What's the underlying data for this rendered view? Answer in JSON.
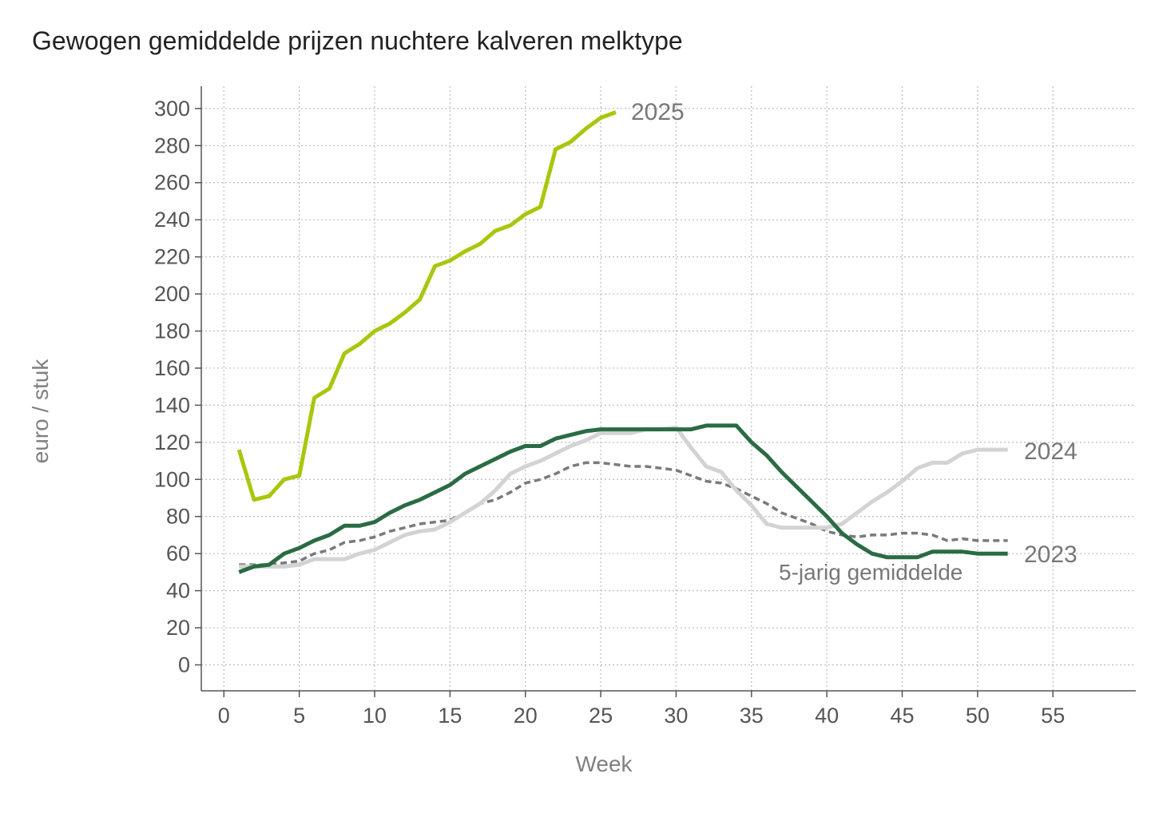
{
  "chart_data": {
    "type": "line",
    "title": "Gewogen gemiddelde prijzen nuchtere kalveren melktype",
    "xlabel": "Week",
    "ylabel": "euro / stuk",
    "xlim": [
      -1.5,
      60.5
    ],
    "ylim": [
      -14,
      312
    ],
    "xticks": [
      0,
      5,
      10,
      15,
      20,
      25,
      30,
      35,
      40,
      45,
      50,
      55
    ],
    "yticks": [
      0,
      20,
      40,
      60,
      80,
      100,
      120,
      140,
      160,
      180,
      200,
      220,
      240,
      260,
      280,
      300
    ],
    "grid": true,
    "legend": "inline labels at line ends",
    "series": [
      {
        "name": "5-jarig gemiddelde",
        "color": "#7a7a7a",
        "style": "dashed",
        "x": [
          1,
          2,
          3,
          4,
          5,
          6,
          7,
          8,
          9,
          10,
          11,
          12,
          13,
          14,
          15,
          16,
          17,
          18,
          19,
          20,
          21,
          22,
          23,
          24,
          25,
          26,
          27,
          28,
          29,
          30,
          31,
          32,
          33,
          34,
          35,
          36,
          37,
          38,
          39,
          40,
          41,
          42,
          43,
          44,
          45,
          46,
          47,
          48,
          49,
          50,
          51,
          52
        ],
        "values": [
          54,
          54,
          54,
          55,
          56,
          60,
          62,
          66,
          67,
          69,
          72,
          74,
          76,
          77,
          78,
          82,
          87,
          89,
          93,
          98,
          100,
          103,
          107,
          109,
          109,
          108,
          107,
          107,
          106,
          105,
          102,
          99,
          98,
          95,
          91,
          87,
          82,
          79,
          76,
          72,
          70,
          69,
          70,
          70,
          71,
          71,
          70,
          67,
          68,
          67,
          67,
          67
        ]
      },
      {
        "name": "2024",
        "color": "#d3d3d3",
        "style": "solid",
        "x": [
          1,
          2,
          3,
          4,
          5,
          6,
          7,
          8,
          9,
          10,
          11,
          12,
          13,
          14,
          15,
          16,
          17,
          18,
          19,
          20,
          21,
          22,
          23,
          24,
          25,
          26,
          27,
          28,
          29,
          30,
          31,
          32,
          33,
          34,
          35,
          36,
          37,
          38,
          39,
          40,
          41,
          42,
          43,
          44,
          45,
          46,
          47,
          48,
          49,
          50,
          51,
          52
        ],
        "values": [
          53,
          53,
          53,
          53,
          54,
          57,
          57,
          57,
          60,
          62,
          66,
          70,
          72,
          73,
          77,
          82,
          87,
          94,
          103,
          107,
          110,
          114,
          118,
          121,
          125,
          125,
          125,
          127,
          127,
          128,
          117,
          107,
          104,
          94,
          86,
          76,
          74,
          74,
          74,
          74,
          76,
          82,
          88,
          93,
          99,
          106,
          109,
          109,
          114,
          116,
          116,
          116
        ]
      },
      {
        "name": "2023",
        "color": "#2a6b43",
        "style": "solid",
        "x": [
          1,
          2,
          3,
          4,
          5,
          6,
          7,
          8,
          9,
          10,
          11,
          12,
          13,
          14,
          15,
          16,
          17,
          18,
          19,
          20,
          21,
          22,
          23,
          24,
          25,
          26,
          27,
          28,
          29,
          30,
          31,
          32,
          33,
          34,
          35,
          36,
          37,
          38,
          39,
          40,
          41,
          42,
          43,
          44,
          45,
          46,
          47,
          48,
          49,
          50,
          51,
          52
        ],
        "values": [
          50,
          53,
          54,
          60,
          63,
          67,
          70,
          75,
          75,
          77,
          82,
          86,
          89,
          93,
          97,
          103,
          107,
          111,
          115,
          118,
          118,
          122,
          124,
          126,
          127,
          127,
          127,
          127,
          127,
          127,
          127,
          129,
          129,
          129,
          120,
          113,
          104,
          96,
          88,
          80,
          71,
          65,
          60,
          58,
          58,
          58,
          61,
          61,
          61,
          60,
          60,
          60
        ]
      },
      {
        "name": "2025",
        "color": "#a6c80c",
        "style": "solid",
        "x": [
          1,
          2,
          3,
          4,
          5,
          6,
          7,
          8,
          9,
          10,
          11,
          12,
          13,
          14,
          15,
          16,
          17,
          18,
          19,
          20,
          21,
          22,
          23,
          24,
          25,
          26
        ],
        "values": [
          116,
          89,
          91,
          100,
          102,
          144,
          149,
          168,
          173,
          180,
          184,
          190,
          197,
          215,
          218,
          223,
          227,
          234,
          237,
          243,
          247,
          278,
          282,
          289,
          295,
          298
        ]
      }
    ]
  }
}
